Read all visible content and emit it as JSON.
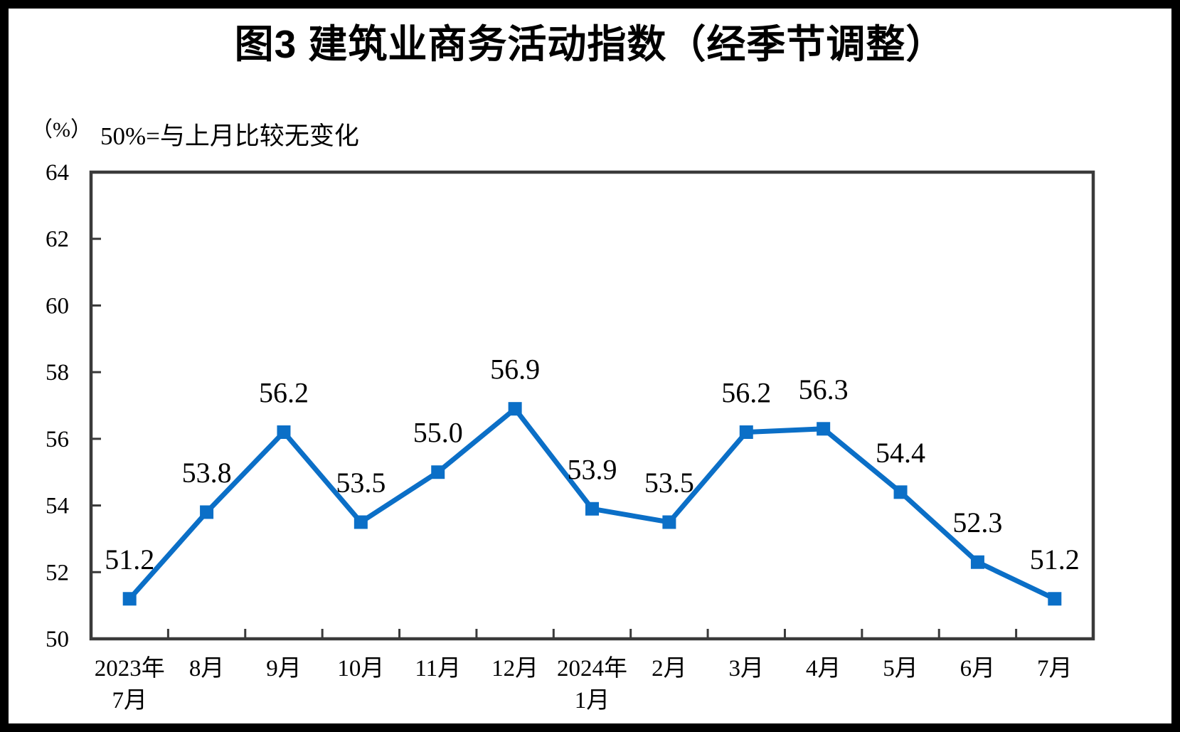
{
  "page": {
    "title": "图3 建筑业商务活动指数（经季节调整）",
    "unit_label": "（%）",
    "subtitle": "50%=与上月比较无变化"
  },
  "chart_data": {
    "type": "line",
    "title": "图3 建筑业商务活动指数（经季节调整）",
    "subtitle": "50%=与上月比较无变化",
    "unit": "（%）",
    "series_name": "建筑业商务活动指数",
    "categories": [
      "2023年\n7月",
      "8月",
      "9月",
      "10月",
      "11月",
      "12月",
      "2024年\n1月",
      "2月",
      "3月",
      "4月",
      "5月",
      "6月",
      "7月"
    ],
    "values": [
      51.2,
      53.8,
      56.2,
      53.5,
      55.0,
      56.9,
      53.9,
      53.5,
      56.2,
      56.3,
      54.4,
      52.3,
      51.2
    ],
    "value_labels": [
      "51.2",
      "53.8",
      "56.2",
      "53.5",
      "55.0",
      "56.9",
      "53.9",
      "53.5",
      "56.2",
      "56.3",
      "54.4",
      "52.3",
      "51.2"
    ],
    "ylim": [
      50,
      64
    ],
    "yticks": [
      50,
      52,
      54,
      56,
      58,
      60,
      62,
      64
    ],
    "grid": false,
    "legend": "none",
    "line_color": "#0b6fc7",
    "marker": "square",
    "marker_color": "#0b6fc7",
    "axis_color": "#3a3a3a",
    "text_color": "#000000"
  }
}
